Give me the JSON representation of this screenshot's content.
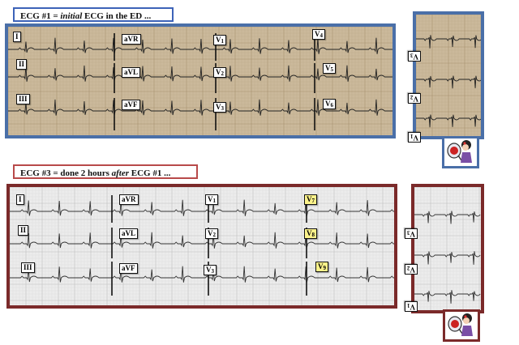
{
  "ecg1": {
    "title_prefix": "ECG #1 = ",
    "title_em": "initial",
    "title_suffix": " ECG in the ED ...",
    "border_color": "#4a6fa8",
    "title_border_color": "#3d63b8",
    "paper_color": "#c8b597",
    "leads": {
      "I": "I",
      "II": "II",
      "III": "III",
      "aVR": "aVR",
      "aVL": "aVL",
      "aVF": "aVF",
      "V1": {
        "base": "V",
        "sub": "1"
      },
      "V2": {
        "base": "V",
        "sub": "2"
      },
      "V3": {
        "base": "V",
        "sub": "3"
      },
      "V4": {
        "base": "V",
        "sub": "4"
      },
      "V5": {
        "base": "V",
        "sub": "5"
      },
      "V6": {
        "base": "V",
        "sub": "6"
      }
    },
    "side_leads": {
      "V3": {
        "base": "V",
        "sub": "3"
      },
      "V2": {
        "base": "V",
        "sub": "2"
      },
      "V1": {
        "base": "V",
        "sub": "1"
      }
    }
  },
  "ecg3": {
    "title_prefix": "ECG #3 = done 2 hours ",
    "title_em": "after",
    "title_suffix": " ECG #1 ...",
    "border_color": "#7b2a2a",
    "title_border_color": "#b84a4a",
    "paper_color": "#ebebeb",
    "highlight_color": "#fbf28a",
    "leads": {
      "I": "I",
      "II": "II",
      "III": "III",
      "aVR": "aVR",
      "aVL": "aVL",
      "aVF": "aVF",
      "V1": {
        "base": "V",
        "sub": "1"
      },
      "V2": {
        "base": "V",
        "sub": "2"
      },
      "V3": {
        "base": "V",
        "sub": "3"
      },
      "V7": {
        "base": "V",
        "sub": "7"
      },
      "V8": {
        "base": "V",
        "sub": "8"
      },
      "V9": {
        "base": "V",
        "sub": "9"
      }
    },
    "side_leads": {
      "V3": {
        "base": "V",
        "sub": "3"
      },
      "V2": {
        "base": "V",
        "sub": "2"
      },
      "V1": {
        "base": "V",
        "sub": "1"
      }
    }
  }
}
